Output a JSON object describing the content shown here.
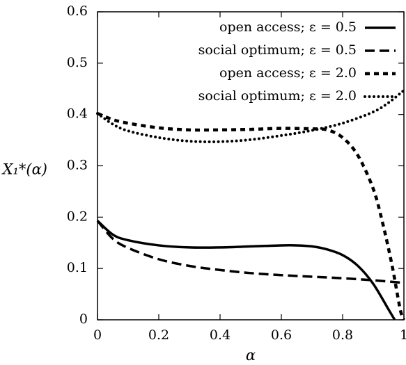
{
  "chart_data": {
    "type": "line",
    "xlabel": "α",
    "ylabel": "X₁*(α)",
    "xlim": [
      0,
      1
    ],
    "ylim": [
      0,
      0.6
    ],
    "xticks": [
      0,
      0.2,
      0.4,
      0.6,
      0.8,
      1
    ],
    "yticks": [
      0,
      0.1,
      0.2,
      0.3,
      0.4,
      0.5,
      0.6
    ],
    "xtick_labels": [
      "0",
      "0.2",
      "0.4",
      "0.6",
      "0.8",
      "1"
    ],
    "ytick_labels": [
      "0",
      "0.1",
      "0.2",
      "0.3",
      "0.4",
      "0.5",
      "0.6"
    ],
    "grid": false,
    "legend_position": "top-right",
    "series": [
      {
        "name": "open access; ε = 0.5",
        "style": "solid",
        "x": [
          0,
          0.05,
          0.1,
          0.2,
          0.3,
          0.4,
          0.5,
          0.6,
          0.65,
          0.7,
          0.75,
          0.8,
          0.85,
          0.9,
          0.95,
          0.97
        ],
        "y": [
          0.193,
          0.166,
          0.155,
          0.145,
          0.141,
          0.141,
          0.143,
          0.145,
          0.145,
          0.143,
          0.137,
          0.126,
          0.105,
          0.07,
          0.02,
          0.0
        ]
      },
      {
        "name": "social optimum; ε = 0.5",
        "style": "dashed",
        "x": [
          0,
          0.05,
          0.1,
          0.2,
          0.3,
          0.4,
          0.5,
          0.6,
          0.7,
          0.8,
          0.9,
          1.0
        ],
        "y": [
          0.193,
          0.158,
          0.14,
          0.118,
          0.105,
          0.097,
          0.091,
          0.087,
          0.084,
          0.081,
          0.077,
          0.072
        ]
      },
      {
        "name": "open access; ε = 2.0",
        "style": "short-dashed",
        "x": [
          0,
          0.05,
          0.1,
          0.2,
          0.3,
          0.4,
          0.5,
          0.6,
          0.7,
          0.75,
          0.8,
          0.85,
          0.9,
          0.93,
          0.96,
          0.98,
          0.99,
          1.0
        ],
        "y": [
          0.402,
          0.39,
          0.383,
          0.374,
          0.37,
          0.37,
          0.371,
          0.373,
          0.372,
          0.37,
          0.355,
          0.32,
          0.255,
          0.19,
          0.11,
          0.045,
          0.015,
          0.0
        ]
      },
      {
        "name": "social optimum; ε = 2.0",
        "style": "dotted",
        "x": [
          0,
          0.05,
          0.1,
          0.2,
          0.3,
          0.4,
          0.5,
          0.6,
          0.7,
          0.8,
          0.9,
          0.95,
          1.0
        ],
        "y": [
          0.402,
          0.381,
          0.368,
          0.355,
          0.348,
          0.347,
          0.351,
          0.359,
          0.369,
          0.383,
          0.405,
          0.423,
          0.447
        ]
      }
    ]
  }
}
